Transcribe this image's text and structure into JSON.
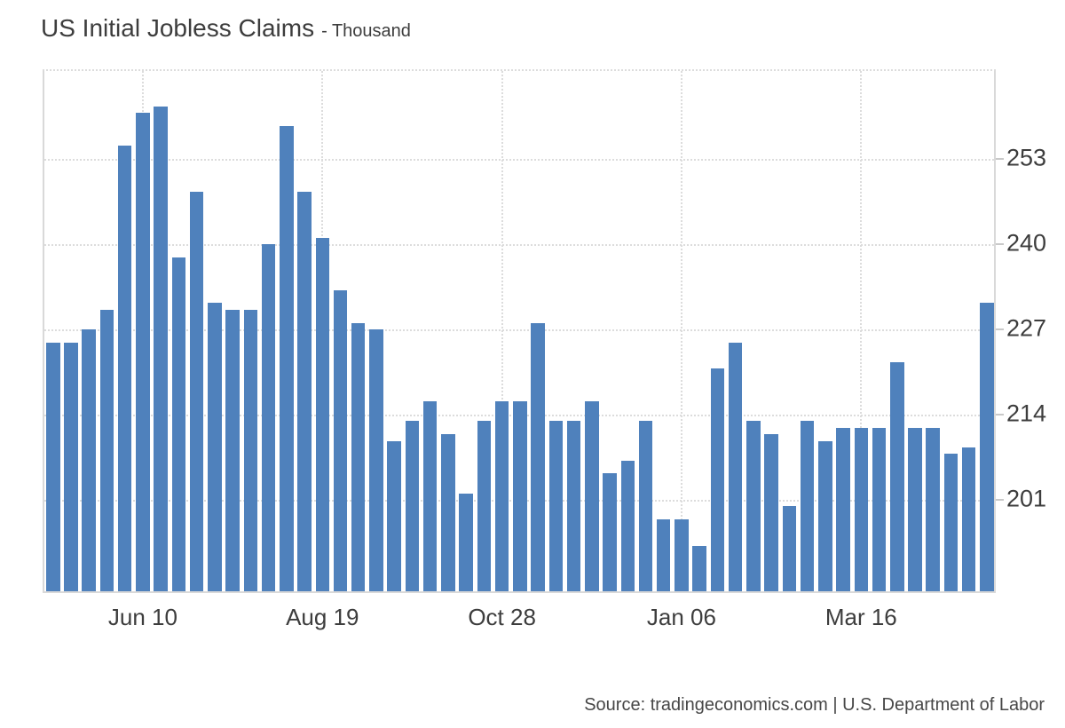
{
  "header": {
    "title": "US Initial Jobless Claims",
    "unit_label": "- Thousand"
  },
  "source_line": "Source: tradingeconomics.com | U.S. Department of Labor",
  "colors": {
    "bar": "#4f81bc",
    "grid": "#dcdcdc",
    "axis_border": "#d9d9d9",
    "tick_mark": "#c9c9c9",
    "text": "#3d3d3d",
    "source_text": "#474747",
    "background": "#ffffff"
  },
  "chart_data": {
    "type": "bar",
    "title": "US Initial Jobless Claims",
    "unit_label": "- Thousand",
    "ylabel": "Thousand",
    "xlabel": "",
    "legend_position": "none",
    "grid": "dotted",
    "ylim": [
      186.8,
      266.7
    ],
    "y_ticks": [
      253,
      240,
      227,
      214,
      201
    ],
    "x_ticks": [
      {
        "label": "Jun 10",
        "bar_index": 5
      },
      {
        "label": "Aug 19",
        "bar_index": 15
      },
      {
        "label": "Oct 28",
        "bar_index": 25
      },
      {
        "label": "Jan 06",
        "bar_index": 35
      },
      {
        "label": "Mar 16",
        "bar_index": 45
      }
    ],
    "values": [
      225,
      225,
      227,
      230,
      255,
      260,
      261,
      238,
      248,
      231,
      230,
      230,
      240,
      258,
      248,
      241,
      233,
      228,
      227,
      210,
      213,
      216,
      211,
      202,
      213,
      216,
      216,
      228,
      213,
      213,
      216,
      205,
      207,
      213,
      198,
      198,
      194,
      221,
      225,
      213,
      211,
      200,
      213,
      210,
      212,
      212,
      212,
      222,
      212,
      212,
      208,
      209,
      231
    ],
    "source": "Source: tradingeconomics.com | U.S. Department of Labor"
  }
}
